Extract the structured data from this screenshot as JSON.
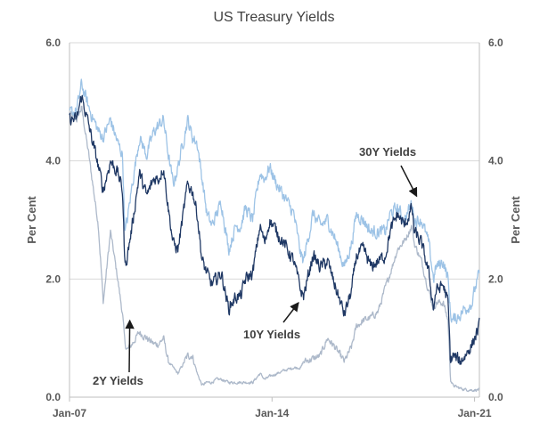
{
  "chart_data": {
    "type": "line",
    "title": "US Treasury Yields",
    "ylabel_left": "Per Cent",
    "ylabel_right": "Per Cent",
    "ylim": [
      0,
      6
    ],
    "yticks": [
      "0.0",
      "2.0",
      "4.0",
      "6.0"
    ],
    "xlim": [
      "2007-01",
      "2021-03"
    ],
    "xticks": [
      {
        "label": "Jan-07",
        "date": "2007-01"
      },
      {
        "label": "Jan-14",
        "date": "2014-01"
      },
      {
        "label": "Jan-21",
        "date": "2021-01"
      }
    ],
    "grid": "horizontal",
    "colors": {
      "y30": "#9dc3e6",
      "y10": "#1f3864",
      "y2": "#adb9ca",
      "axis": "#bfbfbf",
      "grid": "#d9d9d9"
    },
    "series": [
      {
        "name": "30Y Yields",
        "x": [
          "2007-01",
          "2007-04",
          "2007-06",
          "2007-09",
          "2008-01",
          "2008-03",
          "2008-06",
          "2008-09",
          "2008-11",
          "2008-12",
          "2009-01",
          "2009-03",
          "2009-06",
          "2009-09",
          "2009-12",
          "2010-02",
          "2010-04",
          "2010-06",
          "2010-08",
          "2010-10",
          "2011-02",
          "2011-04",
          "2011-06",
          "2011-08",
          "2011-10",
          "2011-12",
          "2012-02",
          "2012-04",
          "2012-07",
          "2012-10",
          "2012-12",
          "2013-02",
          "2013-05",
          "2013-08",
          "2013-10",
          "2013-12",
          "2014-03",
          "2014-06",
          "2014-10",
          "2015-01",
          "2015-02",
          "2015-06",
          "2015-09",
          "2015-12",
          "2016-03",
          "2016-07",
          "2016-10",
          "2016-12",
          "2017-03",
          "2017-06",
          "2017-09",
          "2017-12",
          "2018-02",
          "2018-05",
          "2018-08",
          "2018-11",
          "2018-12",
          "2019-03",
          "2019-06",
          "2019-08",
          "2019-09",
          "2019-12",
          "2020-02",
          "2020-03",
          "2020-04",
          "2020-07",
          "2020-09",
          "2020-12",
          "2021-01",
          "2021-03"
        ],
        "y": [
          4.8,
          4.85,
          5.3,
          4.9,
          4.5,
          4.4,
          4.7,
          4.3,
          4.1,
          2.8,
          3.0,
          3.6,
          4.4,
          4.1,
          4.5,
          4.6,
          4.7,
          4.1,
          3.6,
          3.9,
          4.7,
          4.4,
          4.3,
          3.7,
          3.1,
          2.9,
          3.1,
          3.3,
          2.5,
          2.9,
          2.9,
          3.2,
          3.0,
          3.8,
          3.7,
          3.9,
          3.6,
          3.4,
          3.1,
          2.4,
          2.3,
          3.1,
          2.9,
          3.0,
          2.7,
          2.2,
          2.6,
          3.1,
          3.0,
          2.8,
          2.8,
          2.8,
          3.1,
          3.2,
          3.0,
          3.3,
          3.0,
          3.0,
          2.6,
          2.0,
          2.2,
          2.3,
          2.0,
          1.4,
          1.3,
          1.4,
          1.5,
          1.6,
          1.8,
          2.1
        ]
      },
      {
        "name": "10Y Yields",
        "x": [
          "2007-01",
          "2007-04",
          "2007-06",
          "2007-09",
          "2008-01",
          "2008-03",
          "2008-06",
          "2008-09",
          "2008-11",
          "2008-12",
          "2009-01",
          "2009-03",
          "2009-06",
          "2009-09",
          "2009-12",
          "2010-02",
          "2010-04",
          "2010-06",
          "2010-08",
          "2010-10",
          "2011-02",
          "2011-04",
          "2011-06",
          "2011-08",
          "2011-10",
          "2011-12",
          "2012-02",
          "2012-04",
          "2012-07",
          "2012-10",
          "2012-12",
          "2013-02",
          "2013-05",
          "2013-08",
          "2013-10",
          "2013-12",
          "2014-03",
          "2014-06",
          "2014-10",
          "2015-01",
          "2015-02",
          "2015-06",
          "2015-09",
          "2015-12",
          "2016-03",
          "2016-07",
          "2016-10",
          "2016-12",
          "2017-03",
          "2017-06",
          "2017-09",
          "2017-12",
          "2018-02",
          "2018-05",
          "2018-08",
          "2018-11",
          "2018-12",
          "2019-03",
          "2019-06",
          "2019-08",
          "2019-09",
          "2019-12",
          "2020-02",
          "2020-03",
          "2020-04",
          "2020-07",
          "2020-09",
          "2020-12",
          "2021-01",
          "2021-03"
        ],
        "y": [
          4.7,
          4.7,
          5.1,
          4.6,
          3.9,
          3.5,
          4.0,
          3.8,
          3.5,
          2.2,
          2.4,
          2.9,
          3.8,
          3.4,
          3.7,
          3.7,
          3.9,
          3.2,
          2.6,
          2.5,
          3.6,
          3.5,
          3.1,
          2.3,
          2.1,
          1.9,
          2.0,
          2.1,
          1.5,
          1.7,
          1.7,
          2.0,
          2.1,
          2.9,
          2.6,
          3.0,
          2.8,
          2.6,
          2.3,
          1.8,
          1.7,
          2.4,
          2.2,
          2.3,
          1.9,
          1.4,
          1.8,
          2.4,
          2.5,
          2.2,
          2.3,
          2.4,
          2.8,
          3.1,
          2.9,
          3.2,
          2.8,
          2.6,
          2.1,
          1.5,
          1.8,
          1.9,
          1.6,
          0.6,
          0.7,
          0.6,
          0.7,
          0.9,
          1.0,
          1.2
        ]
      },
      {
        "name": "2Y Yields",
        "x": [
          "2007-01",
          "2007-04",
          "2007-06",
          "2007-09",
          "2008-01",
          "2008-03",
          "2008-06",
          "2008-09",
          "2008-11",
          "2008-12",
          "2009-01",
          "2009-03",
          "2009-06",
          "2009-09",
          "2009-12",
          "2010-02",
          "2010-04",
          "2010-06",
          "2010-08",
          "2010-10",
          "2011-02",
          "2011-04",
          "2011-06",
          "2011-08",
          "2011-10",
          "2011-12",
          "2012-02",
          "2012-04",
          "2012-07",
          "2012-10",
          "2012-12",
          "2013-02",
          "2013-05",
          "2013-08",
          "2013-10",
          "2013-12",
          "2014-03",
          "2014-06",
          "2014-10",
          "2015-01",
          "2015-02",
          "2015-06",
          "2015-09",
          "2015-12",
          "2016-03",
          "2016-07",
          "2016-10",
          "2016-12",
          "2017-03",
          "2017-06",
          "2017-09",
          "2017-12",
          "2018-02",
          "2018-05",
          "2018-08",
          "2018-11",
          "2018-12",
          "2019-03",
          "2019-06",
          "2019-08",
          "2019-09",
          "2019-12",
          "2020-02",
          "2020-03",
          "2020-04",
          "2020-07",
          "2020-09",
          "2020-12",
          "2021-01",
          "2021-03"
        ],
        "y": [
          4.8,
          4.7,
          4.9,
          4.1,
          2.9,
          1.6,
          2.8,
          2.0,
          1.4,
          0.9,
          0.8,
          0.9,
          1.1,
          1.0,
          0.9,
          0.9,
          1.0,
          0.6,
          0.5,
          0.4,
          0.7,
          0.7,
          0.4,
          0.2,
          0.25,
          0.25,
          0.3,
          0.3,
          0.25,
          0.25,
          0.25,
          0.25,
          0.25,
          0.4,
          0.3,
          0.35,
          0.4,
          0.45,
          0.5,
          0.5,
          0.6,
          0.65,
          0.7,
          1.0,
          0.85,
          0.6,
          0.85,
          1.2,
          1.3,
          1.35,
          1.45,
          1.85,
          2.1,
          2.5,
          2.65,
          2.9,
          2.6,
          2.3,
          1.8,
          1.5,
          1.6,
          1.6,
          1.3,
          0.3,
          0.2,
          0.15,
          0.13,
          0.12,
          0.12,
          0.13
        ]
      }
    ],
    "annotations": [
      {
        "text": "30Y Yields",
        "date": "2019-01",
        "value": 3.4
      },
      {
        "text": "10Y Yields",
        "date": "2014-12",
        "value": 1.6
      },
      {
        "text": "2Y Yields",
        "date": "2009-02",
        "value": 1.3
      }
    ]
  }
}
